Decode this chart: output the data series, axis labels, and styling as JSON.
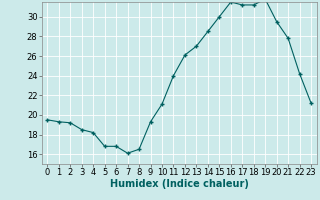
{
  "x": [
    0,
    1,
    2,
    3,
    4,
    5,
    6,
    7,
    8,
    9,
    10,
    11,
    12,
    13,
    14,
    15,
    16,
    17,
    18,
    19,
    20,
    21,
    22,
    23
  ],
  "y": [
    19.5,
    19.3,
    19.2,
    18.5,
    18.2,
    16.8,
    16.8,
    16.1,
    16.5,
    19.3,
    21.1,
    24.0,
    26.1,
    27.0,
    28.5,
    30.0,
    31.5,
    31.2,
    31.2,
    31.8,
    29.5,
    27.8,
    24.2,
    21.2
  ],
  "line_color": "#006060",
  "marker": "+",
  "marker_size": 3,
  "marker_lw": 1.0,
  "line_width": 0.8,
  "bg_color": "#cceaea",
  "grid_color": "#ffffff",
  "xlabel": "Humidex (Indice chaleur)",
  "xlabel_fontsize": 7,
  "tick_fontsize": 6,
  "xlim": [
    -0.5,
    23.5
  ],
  "ylim": [
    15.0,
    31.5
  ],
  "yticks": [
    16,
    18,
    20,
    22,
    24,
    26,
    28,
    30
  ],
  "xticks": [
    0,
    1,
    2,
    3,
    4,
    5,
    6,
    7,
    8,
    9,
    10,
    11,
    12,
    13,
    14,
    15,
    16,
    17,
    18,
    19,
    20,
    21,
    22,
    23
  ]
}
